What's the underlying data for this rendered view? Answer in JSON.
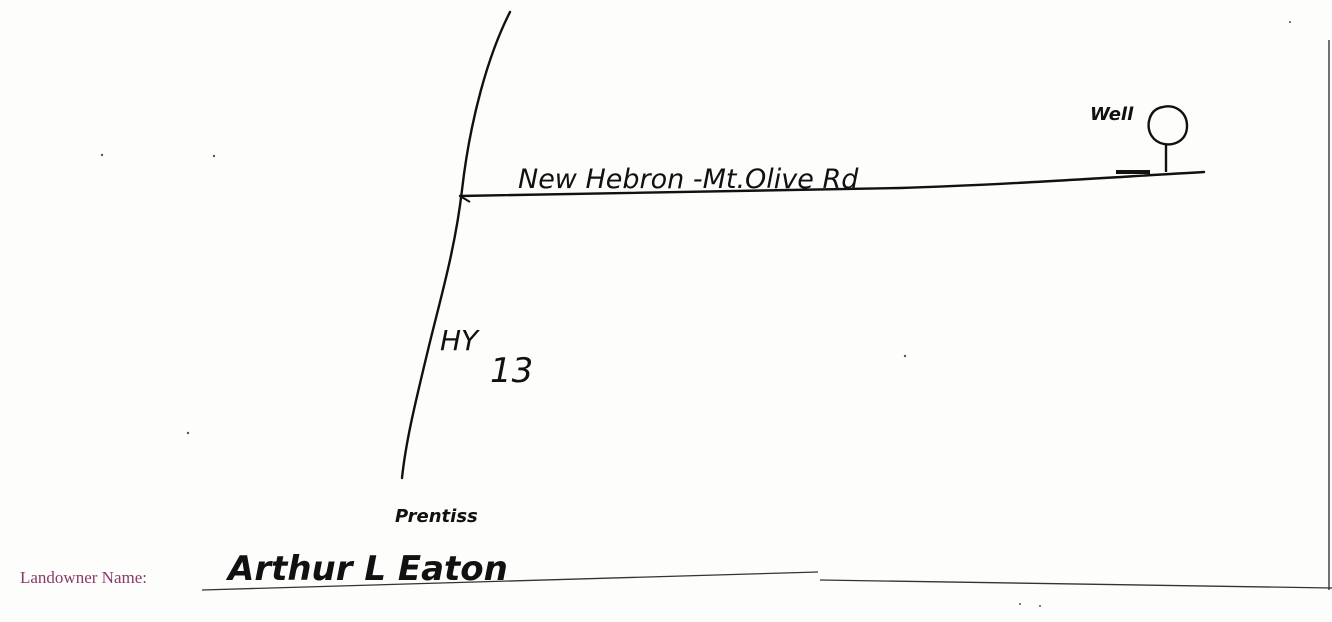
{
  "map": {
    "road_label": "New Hebron -Mt.Olive Rd",
    "highway_label_prefix": "HY",
    "highway_number": "13",
    "town_label": "Prentiss",
    "well_label": "Well",
    "well_icon": "well-symbol"
  },
  "form": {
    "landowner_label": "Landowner Name:",
    "landowner_value": "Arthur L Eaton"
  },
  "colors": {
    "ink": "#111111",
    "form_label": "#8a3a6a",
    "form_rule": "#333333"
  }
}
